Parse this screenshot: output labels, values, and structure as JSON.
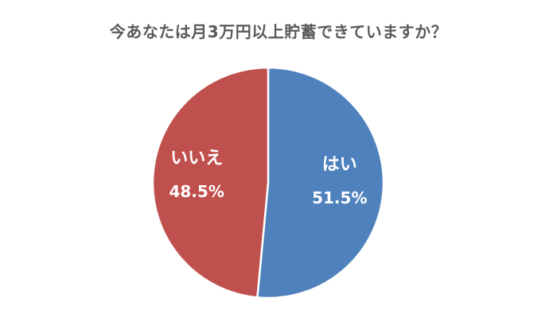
{
  "chart_data": {
    "type": "pie",
    "title": "今あなたは月3万円以上貯蓄できていますか？",
    "slices": [
      {
        "label": "はい",
        "value": 51.5,
        "value_label": "51.5%",
        "color": "#4f81bd"
      },
      {
        "label": "いいえ",
        "value": 48.5,
        "value_label": "48.5%",
        "color": "#c0504d"
      }
    ],
    "start_angle_deg": 0,
    "direction": "clockwise",
    "legend": "none"
  }
}
